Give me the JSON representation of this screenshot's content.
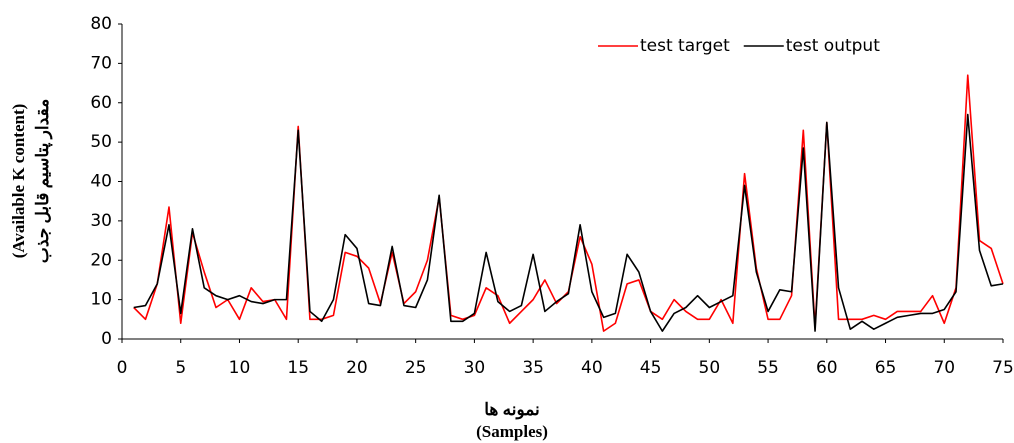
{
  "chart_data": {
    "type": "line",
    "xlabel": [
      "نمونه ها",
      "(Samples)"
    ],
    "ylabel": [
      "(Available K content)",
      "مقدار پتاسیم قابل جذب"
    ],
    "x": [
      1,
      2,
      3,
      4,
      5,
      6,
      7,
      8,
      9,
      10,
      11,
      12,
      13,
      14,
      15,
      16,
      17,
      18,
      19,
      20,
      21,
      22,
      23,
      24,
      25,
      26,
      27,
      28,
      29,
      30,
      31,
      32,
      33,
      34,
      35,
      36,
      37,
      38,
      39,
      40,
      41,
      42,
      43,
      44,
      45,
      46,
      47,
      48,
      49,
      50,
      51,
      52,
      53,
      54,
      55,
      56,
      57,
      58,
      59,
      60,
      61,
      62,
      63,
      64,
      65,
      66,
      67,
      68,
      69,
      70,
      71,
      72,
      73,
      74,
      75
    ],
    "series": [
      {
        "name": "test target",
        "color": "#ff0000",
        "values": [
          8,
          5,
          14,
          33.5,
          4,
          27,
          17,
          8,
          10,
          5,
          13,
          9.5,
          10,
          5,
          54,
          5,
          5,
          6,
          22,
          21,
          18,
          9,
          22,
          9,
          12,
          20,
          36,
          6,
          5,
          6,
          13,
          11,
          4,
          7,
          10,
          15,
          9,
          12,
          26,
          19,
          2,
          4,
          14,
          15,
          7,
          5,
          10,
          7,
          5,
          5,
          10,
          4,
          42,
          18,
          5,
          5,
          11,
          53,
          3,
          55,
          5,
          5,
          5,
          6,
          5,
          7,
          7,
          7,
          11,
          4,
          13,
          67,
          25,
          23,
          14
        ]
      },
      {
        "name": "test output",
        "color": "#000000",
        "values": [
          8,
          8.5,
          14,
          29,
          6.5,
          28,
          13,
          11,
          10,
          11,
          9.5,
          9,
          10,
          10,
          53,
          7,
          4.5,
          10,
          26.5,
          23,
          9,
          8.5,
          23.5,
          8.5,
          8,
          15,
          36.5,
          4.5,
          4.5,
          6.5,
          22,
          9.5,
          7,
          8.5,
          21.5,
          7,
          9.5,
          11.5,
          29,
          12,
          5.5,
          6.5,
          21.5,
          17,
          7,
          2,
          6.5,
          8,
          11,
          8,
          9.5,
          11,
          39,
          17,
          7,
          12.5,
          12,
          48.5,
          2,
          55,
          13,
          2.5,
          4.5,
          2.5,
          4,
          5.5,
          6,
          6.5,
          6.5,
          7.5,
          12,
          57,
          22.5,
          13.5,
          14
        ]
      }
    ],
    "xlim": [
      0,
      75
    ],
    "xticks": [
      0,
      5,
      10,
      15,
      20,
      25,
      30,
      35,
      40,
      45,
      50,
      55,
      60,
      65,
      70,
      75
    ],
    "ylim": [
      0,
      80
    ],
    "yticks": [
      0,
      10,
      20,
      30,
      40,
      50,
      60,
      70,
      80
    ],
    "grid": false,
    "legend": "top-right"
  }
}
